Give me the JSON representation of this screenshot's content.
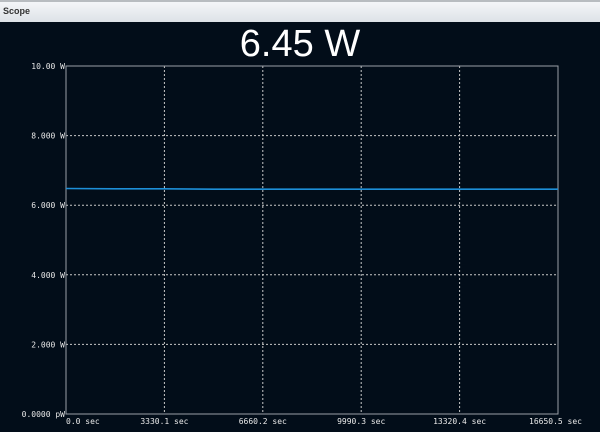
{
  "window": {
    "title": "Scope"
  },
  "readout": "6.45 W",
  "chart_data": {
    "type": "line",
    "xlim": [
      0,
      16650.5
    ],
    "ylim": [
      0,
      10
    ],
    "x_ticks": [
      "0.0 sec",
      "3330.1 sec",
      "6660.2 sec",
      "9990.3 sec",
      "13320.4 sec",
      "16650.5 sec"
    ],
    "y_ticks": [
      "0.0000 pW",
      "2.000 W",
      "4.000 W",
      "6.000 W",
      "8.000 W",
      "10.00 W"
    ],
    "grid": true,
    "series": [
      {
        "color": "#1d8fd8",
        "x": [
          0,
          1665,
          3330,
          4995,
          6660,
          8325,
          9990,
          11655,
          13320,
          14985,
          16650.5
        ],
        "values": [
          6.48,
          6.47,
          6.47,
          6.46,
          6.46,
          6.46,
          6.46,
          6.46,
          6.46,
          6.46,
          6.46
        ]
      }
    ]
  },
  "colors": {
    "background": "#020d19",
    "line": "#1d8fd8",
    "grid": "#c8c8c8"
  }
}
